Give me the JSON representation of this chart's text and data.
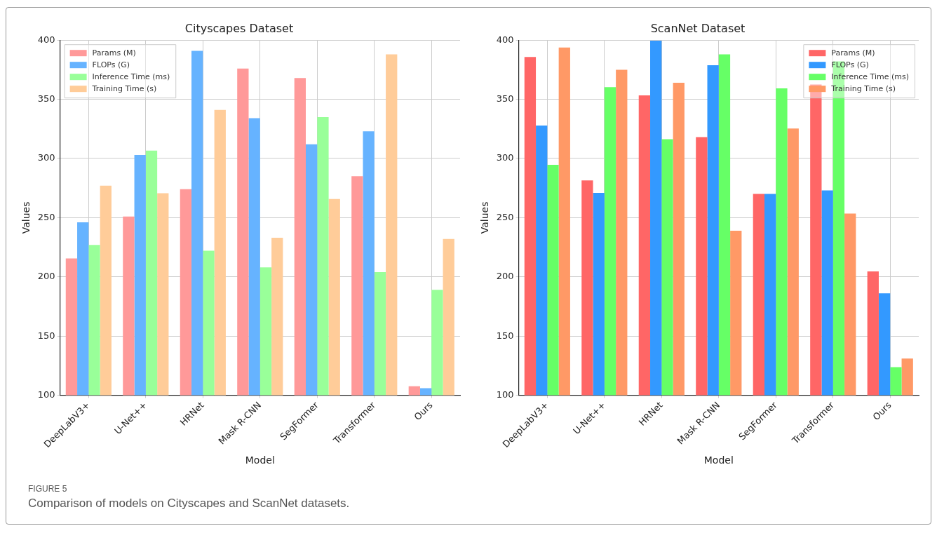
{
  "chart_data": [
    {
      "type": "bar",
      "title": "Cityscapes Dataset",
      "xlabel": "Model",
      "ylabel": "Values",
      "categories": [
        "DeepLabV3+",
        "U-Net++",
        "HRNet",
        "Mask R-CNN",
        "SegFormer",
        "Transformer",
        "Ours"
      ],
      "series": [
        {
          "name": "Params (M)",
          "color": "#ff9999",
          "values": [
            215.6,
            251,
            274,
            376,
            368,
            285,
            107.5
          ]
        },
        {
          "name": "FLOPs (G)",
          "color": "#66b3ff",
          "values": [
            246,
            303,
            391,
            334,
            312,
            323,
            106
          ]
        },
        {
          "name": "Inference Time (ms)",
          "color": "#99ff99",
          "values": [
            227,
            306.6,
            222,
            208,
            335,
            204,
            189
          ]
        },
        {
          "name": "Training Time (s)",
          "color": "#ffcc99",
          "values": [
            277,
            270.6,
            341,
            233,
            265.7,
            388,
            232
          ]
        }
      ],
      "ylim": [
        100,
        400
      ],
      "yticks": [
        100,
        150,
        200,
        250,
        300,
        350,
        400
      ],
      "grid": true,
      "legend": "top left",
      "annotations": [
        "FIGURE 5",
        "Comparison of models on Cityscapes and ScanNet datasets."
      ]
    },
    {
      "type": "bar",
      "title": "ScanNet Dataset",
      "xlabel": "Model",
      "ylabel": "Values",
      "categories": [
        "DeepLabV3+",
        "U-Net++",
        "HRNet",
        "Mask R-CNN",
        "SegFormer",
        "Transformer",
        "Ours"
      ],
      "series": [
        {
          "name": "Params (M)",
          "color": "#ff6666",
          "values": [
            385.8,
            281.4,
            353.3,
            318,
            270,
            362.5,
            204.6
          ]
        },
        {
          "name": "FLOPs (G)",
          "color": "#3399ff",
          "values": [
            327.8,
            271,
            399.5,
            378.8,
            270,
            273,
            186
          ]
        },
        {
          "name": "Inference Time (ms)",
          "color": "#66ff66",
          "values": [
            294.7,
            360.3,
            316.3,
            388,
            359.3,
            382,
            123.7
          ]
        },
        {
          "name": "Training Time (s)",
          "color": "#ff9966",
          "values": [
            393.8,
            375,
            364,
            239,
            325.3,
            253.5,
            131
          ]
        }
      ],
      "ylim": [
        100,
        400
      ],
      "yticks": [
        100,
        150,
        200,
        250,
        300,
        350,
        400
      ],
      "grid": true,
      "legend": "top right"
    }
  ]
}
